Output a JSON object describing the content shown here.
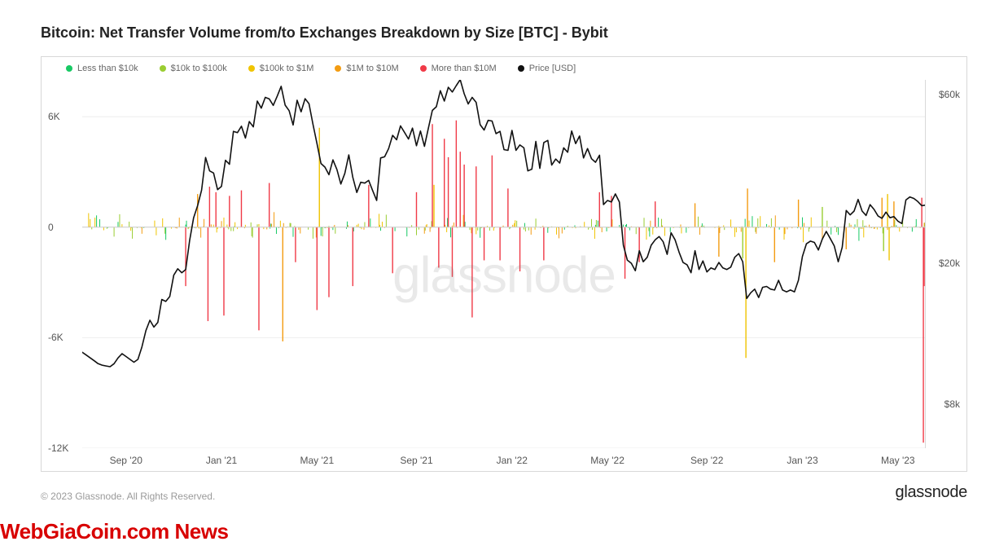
{
  "title": "Bitcoin: Net Transfer Volume from/to Exchanges Breakdown by Size [BTC] - Bybit",
  "watermark": "glassnode",
  "brand": "glassnode",
  "copyright": "© 2023 Glassnode. All Rights Reserved.",
  "overlay": "WebGiaCoin.com News",
  "chart": {
    "background_color": "#ffffff",
    "border_color": "#d8d8d8",
    "grid_color": "#eeeeee",
    "legend": [
      {
        "label": "Less than $10k",
        "color": "#18c964"
      },
      {
        "label": "$10k to $100k",
        "color": "#9acd32"
      },
      {
        "label": "$100k to $1M",
        "color": "#f0c400"
      },
      {
        "label": "$1M to $10M",
        "color": "#f39c12"
      },
      {
        "label": "More than $10M",
        "color": "#f03a47"
      },
      {
        "label": "Price [USD]",
        "color": "#111111"
      }
    ],
    "left_axis": {
      "label": "",
      "min": -12000,
      "max": 8000,
      "ticks": [
        {
          "v": 6000,
          "label": "6K"
        },
        {
          "v": 0,
          "label": "0"
        },
        {
          "v": -6000,
          "label": "-6K"
        },
        {
          "v": -12000,
          "label": "-12K"
        }
      ],
      "tick_fontsize": 12,
      "tick_color": "#555"
    },
    "right_axis": {
      "label": "",
      "min": 6000,
      "max": 66000,
      "ticks": [
        {
          "v": 60000,
          "label": "$60k"
        },
        {
          "v": 20000,
          "label": "$20k"
        },
        {
          "v": 8000,
          "label": "$8k"
        }
      ],
      "tick_fontsize": 12,
      "tick_color": "#555"
    },
    "x_axis": {
      "domain_start": 0,
      "domain_end": 1060,
      "ticks": [
        {
          "i": 55,
          "label": "Sep '20"
        },
        {
          "i": 175,
          "label": "Jan '21"
        },
        {
          "i": 295,
          "label": "May '21"
        },
        {
          "i": 420,
          "label": "Sep '21"
        },
        {
          "i": 540,
          "label": "Jan '22"
        },
        {
          "i": 660,
          "label": "May '22"
        },
        {
          "i": 785,
          "label": "Sep '22"
        },
        {
          "i": 905,
          "label": "Jan '23"
        },
        {
          "i": 1025,
          "label": "May '23"
        }
      ]
    },
    "price_series": {
      "color": "#111111",
      "line_width": 1.6,
      "points": [
        [
          0,
          11200
        ],
        [
          5,
          11000
        ],
        [
          10,
          10800
        ],
        [
          15,
          10600
        ],
        [
          20,
          10400
        ],
        [
          25,
          10300
        ],
        [
          30,
          10250
        ],
        [
          35,
          10200
        ],
        [
          40,
          10400
        ],
        [
          45,
          10800
        ],
        [
          50,
          11100
        ],
        [
          55,
          10900
        ],
        [
          60,
          10700
        ],
        [
          65,
          10500
        ],
        [
          70,
          10700
        ],
        [
          75,
          11600
        ],
        [
          80,
          12900
        ],
        [
          85,
          13800
        ],
        [
          90,
          13200
        ],
        [
          95,
          13600
        ],
        [
          100,
          15800
        ],
        [
          105,
          15600
        ],
        [
          110,
          16100
        ],
        [
          115,
          18500
        ],
        [
          120,
          19300
        ],
        [
          125,
          18800
        ],
        [
          130,
          19200
        ],
        [
          135,
          23200
        ],
        [
          140,
          26900
        ],
        [
          145,
          29100
        ],
        [
          150,
          32200
        ],
        [
          155,
          39800
        ],
        [
          160,
          36500
        ],
        [
          165,
          36000
        ],
        [
          170,
          32300
        ],
        [
          175,
          33000
        ],
        [
          180,
          39100
        ],
        [
          185,
          38100
        ],
        [
          190,
          47200
        ],
        [
          195,
          46800
        ],
        [
          200,
          48800
        ],
        [
          205,
          45200
        ],
        [
          210,
          50300
        ],
        [
          215,
          48600
        ],
        [
          220,
          57500
        ],
        [
          225,
          54900
        ],
        [
          230,
          58900
        ],
        [
          235,
          58300
        ],
        [
          240,
          55900
        ],
        [
          245,
          59400
        ],
        [
          250,
          63300
        ],
        [
          255,
          56000
        ],
        [
          260,
          54000
        ],
        [
          265,
          49200
        ],
        [
          270,
          57800
        ],
        [
          275,
          53600
        ],
        [
          280,
          58400
        ],
        [
          285,
          56500
        ],
        [
          290,
          49400
        ],
        [
          295,
          43600
        ],
        [
          300,
          38300
        ],
        [
          305,
          37400
        ],
        [
          310,
          35600
        ],
        [
          315,
          39200
        ],
        [
          320,
          36800
        ],
        [
          325,
          33500
        ],
        [
          330,
          35900
        ],
        [
          335,
          40500
        ],
        [
          340,
          35000
        ],
        [
          345,
          31700
        ],
        [
          350,
          33900
        ],
        [
          355,
          33700
        ],
        [
          360,
          34300
        ],
        [
          365,
          32100
        ],
        [
          370,
          30100
        ],
        [
          375,
          39700
        ],
        [
          380,
          40000
        ],
        [
          385,
          42200
        ],
        [
          390,
          46000
        ],
        [
          395,
          44700
        ],
        [
          400,
          48900
        ],
        [
          405,
          46900
        ],
        [
          410,
          44900
        ],
        [
          415,
          48200
        ],
        [
          420,
          43000
        ],
        [
          425,
          47300
        ],
        [
          430,
          42800
        ],
        [
          435,
          48300
        ],
        [
          440,
          54100
        ],
        [
          445,
          55400
        ],
        [
          450,
          61500
        ],
        [
          455,
          57500
        ],
        [
          460,
          62900
        ],
        [
          465,
          61000
        ],
        [
          470,
          63600
        ],
        [
          475,
          66100
        ],
        [
          480,
          60300
        ],
        [
          485,
          56400
        ],
        [
          490,
          58900
        ],
        [
          495,
          57000
        ],
        [
          500,
          49300
        ],
        [
          505,
          47600
        ],
        [
          510,
          50700
        ],
        [
          515,
          50500
        ],
        [
          520,
          46500
        ],
        [
          525,
          47200
        ],
        [
          530,
          41900
        ],
        [
          535,
          41700
        ],
        [
          540,
          47500
        ],
        [
          545,
          41700
        ],
        [
          550,
          43200
        ],
        [
          555,
          42400
        ],
        [
          560,
          36500
        ],
        [
          565,
          36900
        ],
        [
          570,
          44200
        ],
        [
          575,
          37100
        ],
        [
          580,
          43900
        ],
        [
          585,
          44500
        ],
        [
          590,
          37900
        ],
        [
          595,
          39400
        ],
        [
          600,
          38400
        ],
        [
          605,
          42400
        ],
        [
          610,
          41200
        ],
        [
          615,
          47300
        ],
        [
          620,
          43600
        ],
        [
          625,
          45800
        ],
        [
          630,
          39700
        ],
        [
          635,
          42200
        ],
        [
          640,
          39500
        ],
        [
          645,
          38600
        ],
        [
          650,
          40400
        ],
        [
          655,
          29300
        ],
        [
          660,
          30100
        ],
        [
          665,
          29800
        ],
        [
          670,
          31400
        ],
        [
          675,
          29800
        ],
        [
          680,
          22500
        ],
        [
          685,
          20400
        ],
        [
          690,
          20000
        ],
        [
          695,
          19050
        ],
        [
          700,
          21700
        ],
        [
          705,
          20200
        ],
        [
          710,
          20800
        ],
        [
          715,
          22500
        ],
        [
          720,
          23300
        ],
        [
          725,
          23800
        ],
        [
          730,
          23000
        ],
        [
          735,
          21200
        ],
        [
          740,
          24400
        ],
        [
          745,
          23300
        ],
        [
          750,
          21500
        ],
        [
          755,
          20100
        ],
        [
          760,
          19800
        ],
        [
          765,
          18800
        ],
        [
          770,
          21700
        ],
        [
          775,
          19200
        ],
        [
          780,
          20300
        ],
        [
          785,
          18900
        ],
        [
          790,
          19400
        ],
        [
          795,
          19200
        ],
        [
          800,
          20100
        ],
        [
          805,
          19400
        ],
        [
          810,
          19200
        ],
        [
          815,
          19500
        ],
        [
          820,
          20800
        ],
        [
          825,
          21300
        ],
        [
          830,
          20200
        ],
        [
          835,
          15900
        ],
        [
          840,
          16500
        ],
        [
          845,
          16900
        ],
        [
          850,
          16000
        ],
        [
          855,
          17100
        ],
        [
          860,
          17200
        ],
        [
          865,
          16900
        ],
        [
          870,
          16800
        ],
        [
          875,
          17900
        ],
        [
          880,
          16800
        ],
        [
          885,
          16600
        ],
        [
          890,
          16800
        ],
        [
          895,
          16600
        ],
        [
          900,
          17900
        ],
        [
          905,
          20900
        ],
        [
          910,
          22700
        ],
        [
          915,
          23100
        ],
        [
          920,
          22900
        ],
        [
          925,
          21800
        ],
        [
          930,
          23400
        ],
        [
          935,
          24600
        ],
        [
          940,
          23500
        ],
        [
          945,
          22400
        ],
        [
          950,
          20200
        ],
        [
          955,
          22200
        ],
        [
          960,
          28200
        ],
        [
          965,
          27400
        ],
        [
          970,
          28100
        ],
        [
          975,
          30300
        ],
        [
          980,
          28100
        ],
        [
          985,
          27300
        ],
        [
          990,
          29300
        ],
        [
          995,
          28400
        ],
        [
          1000,
          27200
        ],
        [
          1005,
          26800
        ],
        [
          1010,
          27900
        ],
        [
          1015,
          26900
        ],
        [
          1020,
          27100
        ],
        [
          1025,
          26300
        ],
        [
          1030,
          25900
        ],
        [
          1035,
          30200
        ],
        [
          1040,
          30800
        ],
        [
          1045,
          30500
        ],
        [
          1050,
          29900
        ],
        [
          1055,
          29100
        ],
        [
          1060,
          29200
        ]
      ]
    },
    "bars_random_seed": 42,
    "bars_density": 1060,
    "bar_style": {
      "small_color": "#18c964",
      "mid1_color": "#9acd32",
      "mid2_color": "#f0c400",
      "large_color": "#f39c12",
      "huge_color": "#f03a47"
    },
    "bar_special": [
      {
        "i": 130,
        "v": -3200,
        "c": "#f03a47"
      },
      {
        "i": 145,
        "v": 1800,
        "c": "#f39c12"
      },
      {
        "i": 158,
        "v": -5100,
        "c": "#f03a47"
      },
      {
        "i": 160,
        "v": 2200,
        "c": "#f03a47"
      },
      {
        "i": 168,
        "v": 1900,
        "c": "#f03a47"
      },
      {
        "i": 178,
        "v": -4800,
        "c": "#f03a47"
      },
      {
        "i": 185,
        "v": 1700,
        "c": "#f03a47"
      },
      {
        "i": 200,
        "v": 2000,
        "c": "#f03a47"
      },
      {
        "i": 222,
        "v": -5600,
        "c": "#f03a47"
      },
      {
        "i": 235,
        "v": 2400,
        "c": "#f03a47"
      },
      {
        "i": 252,
        "v": -6200,
        "c": "#f39c12"
      },
      {
        "i": 268,
        "v": -1900,
        "c": "#f03a47"
      },
      {
        "i": 295,
        "v": -4500,
        "c": "#f03a47"
      },
      {
        "i": 298,
        "v": 5400,
        "c": "#f0c400"
      },
      {
        "i": 310,
        "v": -3800,
        "c": "#f03a47"
      },
      {
        "i": 340,
        "v": -3200,
        "c": "#f03a47"
      },
      {
        "i": 360,
        "v": 2300,
        "c": "#f03a47"
      },
      {
        "i": 390,
        "v": -2500,
        "c": "#f03a47"
      },
      {
        "i": 420,
        "v": 1900,
        "c": "#f03a47"
      },
      {
        "i": 440,
        "v": 5600,
        "c": "#f03a47"
      },
      {
        "i": 442,
        "v": 2300,
        "c": "#f0c400"
      },
      {
        "i": 448,
        "v": -2200,
        "c": "#f03a47"
      },
      {
        "i": 455,
        "v": 4800,
        "c": "#f03a47"
      },
      {
        "i": 460,
        "v": 3800,
        "c": "#f03a47"
      },
      {
        "i": 465,
        "v": -2700,
        "c": "#f03a47"
      },
      {
        "i": 470,
        "v": 5800,
        "c": "#f03a47"
      },
      {
        "i": 475,
        "v": 4100,
        "c": "#f03a47"
      },
      {
        "i": 480,
        "v": 3400,
        "c": "#f03a47"
      },
      {
        "i": 490,
        "v": -4900,
        "c": "#f03a47"
      },
      {
        "i": 495,
        "v": 3300,
        "c": "#f03a47"
      },
      {
        "i": 505,
        "v": -1800,
        "c": "#f03a47"
      },
      {
        "i": 515,
        "v": 3900,
        "c": "#f03a47"
      },
      {
        "i": 525,
        "v": -1800,
        "c": "#f03a47"
      },
      {
        "i": 535,
        "v": 2100,
        "c": "#f03a47"
      },
      {
        "i": 550,
        "v": -2400,
        "c": "#f03a47"
      },
      {
        "i": 580,
        "v": -1800,
        "c": "#f03a47"
      },
      {
        "i": 650,
        "v": 1900,
        "c": "#f03a47"
      },
      {
        "i": 665,
        "v": 1700,
        "c": "#f03a47"
      },
      {
        "i": 682,
        "v": -2800,
        "c": "#f03a47"
      },
      {
        "i": 700,
        "v": -1900,
        "c": "#f03a47"
      },
      {
        "i": 720,
        "v": 1400,
        "c": "#f03a47"
      },
      {
        "i": 770,
        "v": 1300,
        "c": "#f39c12"
      },
      {
        "i": 800,
        "v": -1600,
        "c": "#f39c12"
      },
      {
        "i": 830,
        "v": -1700,
        "c": "#9acd32"
      },
      {
        "i": 834,
        "v": -7100,
        "c": "#f0c400"
      },
      {
        "i": 836,
        "v": 2100,
        "c": "#f39c12"
      },
      {
        "i": 870,
        "v": -1900,
        "c": "#f39c12"
      },
      {
        "i": 900,
        "v": 1500,
        "c": "#f39c12"
      },
      {
        "i": 930,
        "v": 1100,
        "c": "#9acd32"
      },
      {
        "i": 960,
        "v": -1200,
        "c": "#f39c12"
      },
      {
        "i": 1005,
        "v": 1600,
        "c": "#f39c12"
      },
      {
        "i": 1007,
        "v": -1300,
        "c": "#9acd32"
      },
      {
        "i": 1012,
        "v": 1800,
        "c": "#f0c400"
      },
      {
        "i": 1014,
        "v": -1800,
        "c": "#f0c400"
      },
      {
        "i": 1020,
        "v": 1400,
        "c": "#f39c12"
      },
      {
        "i": 1055,
        "v": 1600,
        "c": "#f03a47"
      },
      {
        "i": 1057,
        "v": -11700,
        "c": "#f03a47"
      },
      {
        "i": 1058,
        "v": -3200,
        "c": "#f03a47"
      }
    ]
  }
}
